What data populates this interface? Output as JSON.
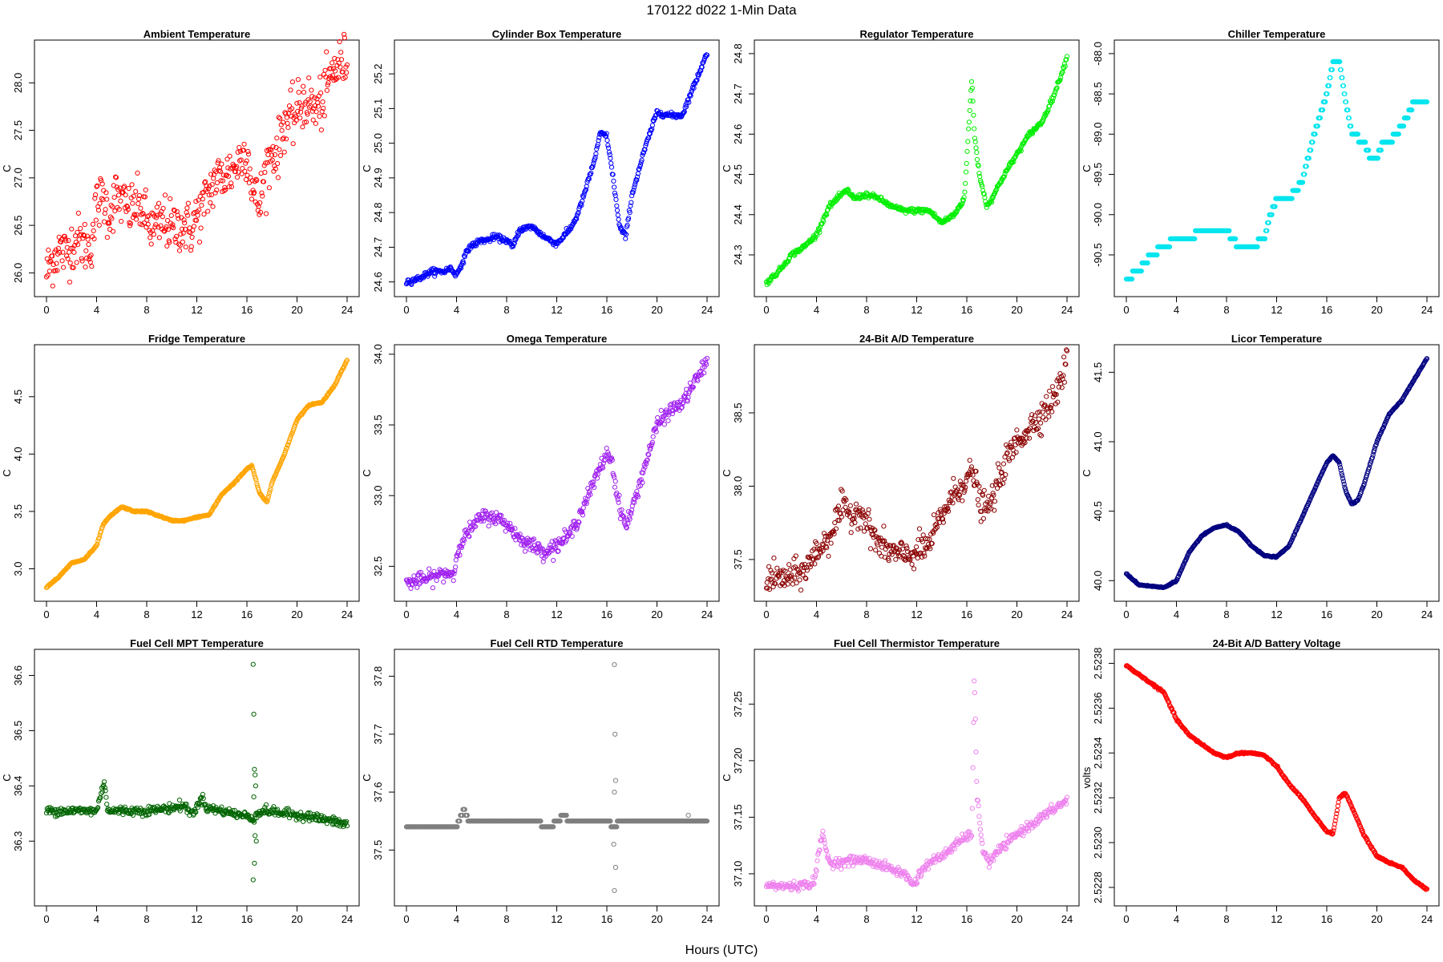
{
  "figure": {
    "title": "170122   d022   1-Min Data",
    "xlabel": "Hours (UTC)"
  },
  "chart_data": [
    {
      "type": "scatter",
      "title": "Ambient Temperature",
      "ylabel": "C",
      "color": "#ff0000",
      "xlim": [
        0,
        24
      ],
      "ylim": [
        25.85,
        28.35
      ],
      "xticks": [
        0,
        4,
        8,
        12,
        16,
        20,
        24
      ],
      "yticks": [
        26.0,
        26.5,
        27.0,
        27.5,
        28.0
      ],
      "ytick_labels": [
        "26.0",
        "26.5",
        "27.0",
        "27.5",
        "28.0"
      ],
      "noise": 0.14,
      "x": [
        0,
        0.5,
        1,
        1.5,
        2,
        2.5,
        3,
        3.5,
        4,
        4.5,
        5,
        5.5,
        6,
        6.5,
        7,
        7.5,
        8,
        8.5,
        9,
        9.5,
        10,
        10.5,
        11,
        11.5,
        12,
        12.5,
        13,
        13.5,
        14,
        14.5,
        15,
        15.5,
        16,
        16.5,
        17,
        17.5,
        18,
        18.5,
        19,
        19.5,
        20,
        20.5,
        21,
        21.5,
        22,
        22.5,
        23,
        23.5,
        24
      ],
      "y": [
        26.0,
        26.15,
        26.25,
        26.2,
        26.3,
        26.35,
        26.3,
        26.25,
        26.7,
        26.8,
        26.6,
        26.8,
        26.75,
        26.65,
        26.7,
        26.7,
        26.55,
        26.45,
        26.5,
        26.55,
        26.45,
        26.5,
        26.5,
        26.45,
        26.6,
        26.7,
        26.85,
        27.0,
        27.0,
        27.05,
        27.1,
        27.2,
        27.3,
        26.85,
        26.7,
        27.1,
        27.25,
        27.3,
        27.6,
        27.6,
        27.7,
        27.8,
        27.8,
        27.7,
        27.8,
        28.0,
        28.15,
        28.2,
        28.25
      ]
    },
    {
      "type": "scatter",
      "title": "Cylinder Box Temperature",
      "ylabel": "C",
      "color": "#0000ff",
      "xlim": [
        0,
        24
      ],
      "ylim": [
        24.585,
        25.27
      ],
      "xticks": [
        0,
        4,
        8,
        12,
        16,
        20,
        24
      ],
      "yticks": [
        24.6,
        24.7,
        24.8,
        24.9,
        25.0,
        25.1,
        25.2
      ],
      "ytick_labels": [
        "24.6",
        "24.7",
        "24.8",
        "24.9",
        "25.0",
        "25.1",
        "25.2"
      ],
      "noise": 0.004,
      "x": [
        0,
        1,
        2,
        3,
        3.5,
        4,
        5,
        6,
        6.5,
        7,
        8,
        8.5,
        9,
        10,
        11,
        12,
        13,
        13.5,
        14,
        15,
        15.5,
        16,
        16.5,
        17,
        17.5,
        18,
        19,
        20,
        21,
        22,
        23,
        24
      ],
      "y": [
        24.6,
        24.61,
        24.63,
        24.63,
        24.64,
        24.62,
        24.7,
        24.72,
        24.72,
        24.73,
        24.72,
        24.7,
        24.75,
        24.76,
        24.73,
        24.71,
        24.75,
        24.78,
        24.83,
        24.95,
        25.03,
        25.02,
        24.9,
        24.76,
        24.73,
        24.85,
        24.98,
        25.09,
        25.08,
        25.08,
        25.17,
        25.26
      ]
    },
    {
      "type": "scatter",
      "title": "Regulator Temperature",
      "ylabel": "C",
      "color": "#00ee00",
      "xlim": [
        0,
        24
      ],
      "ylim": [
        24.22,
        24.81
      ],
      "xticks": [
        0,
        4,
        8,
        12,
        16,
        20,
        24
      ],
      "yticks": [
        24.3,
        24.4,
        24.5,
        24.6,
        24.7,
        24.8
      ],
      "ytick_labels": [
        "24.3",
        "24.4",
        "24.5",
        "24.6",
        "24.7",
        "24.8"
      ],
      "noise": 0.003,
      "x": [
        0,
        1,
        2,
        3,
        4,
        5,
        6,
        6.5,
        7,
        8,
        9,
        10,
        11,
        12,
        13,
        14,
        15,
        15.8,
        16.4,
        16.6,
        17,
        17.6,
        18,
        19,
        20,
        21,
        22,
        23,
        24
      ],
      "y": [
        24.23,
        24.26,
        24.3,
        24.32,
        24.35,
        24.42,
        24.45,
        24.46,
        24.44,
        24.45,
        24.44,
        24.42,
        24.41,
        24.41,
        24.41,
        24.38,
        24.4,
        24.44,
        24.74,
        24.6,
        24.5,
        24.42,
        24.44,
        24.5,
        24.55,
        24.6,
        24.63,
        24.7,
        24.79
      ]
    },
    {
      "type": "scatter",
      "title": "Chiller Temperature",
      "ylabel": "C",
      "color": "#00e5ee",
      "xlim": [
        0,
        24
      ],
      "ylim": [
        -90.9,
        -87.95
      ],
      "xticks": [
        0,
        4,
        8,
        12,
        16,
        20,
        24
      ],
      "yticks": [
        -88.0,
        -88.5,
        -89.0,
        -89.5,
        -90.0,
        -90.5
      ],
      "ytick_labels": [
        "-88.0",
        "-88.5",
        "-89.0",
        "-89.5",
        "-90.0",
        "-90.5"
      ],
      "noise": 0,
      "step": 0.1,
      "x": [
        0,
        1,
        2,
        3,
        4,
        5,
        6,
        7,
        8,
        8.5,
        9,
        10,
        11,
        11.5,
        12,
        13,
        14,
        15,
        16,
        16.5,
        17,
        17.5,
        18,
        19,
        19.5,
        20,
        20.5,
        21,
        22,
        23,
        24
      ],
      "y": [
        -90.8,
        -90.7,
        -90.5,
        -90.4,
        -90.3,
        -90.3,
        -90.2,
        -90.2,
        -90.2,
        -90.3,
        -90.4,
        -90.4,
        -90.3,
        -90.0,
        -89.8,
        -89.8,
        -89.6,
        -89.0,
        -88.5,
        -88.1,
        -88.1,
        -88.6,
        -89.0,
        -89.1,
        -89.3,
        -89.3,
        -89.1,
        -89.1,
        -88.9,
        -88.6,
        -88.6
      ]
    },
    {
      "type": "scatter",
      "title": "Fridge Temperature",
      "ylabel": "C",
      "color": "#ffa500",
      "xlim": [
        0,
        24
      ],
      "ylim": [
        2.8,
        4.87
      ],
      "xticks": [
        0,
        4,
        8,
        12,
        16,
        20,
        24
      ],
      "yticks": [
        3.0,
        3.5,
        4.0,
        4.5
      ],
      "ytick_labels": [
        "3.0",
        "3.5",
        "4.0",
        "4.5"
      ],
      "noise": 0.003,
      "x": [
        0,
        1,
        2,
        3,
        4,
        4.5,
        5,
        6,
        7,
        8,
        9,
        10,
        11,
        12,
        13,
        14,
        15,
        16,
        16.4,
        16.6,
        17,
        17.6,
        18,
        19,
        20,
        21,
        22,
        23,
        24
      ],
      "y": [
        2.84,
        2.93,
        3.05,
        3.08,
        3.2,
        3.38,
        3.45,
        3.54,
        3.5,
        3.5,
        3.46,
        3.42,
        3.42,
        3.45,
        3.47,
        3.65,
        3.75,
        3.87,
        3.9,
        3.82,
        3.66,
        3.58,
        3.75,
        4.0,
        4.3,
        4.43,
        4.45,
        4.6,
        4.82
      ]
    },
    {
      "type": "scatter",
      "title": "Omega Temperature",
      "ylabel": "C",
      "color": "#a020f0",
      "xlim": [
        0,
        24
      ],
      "ylim": [
        32.32,
        34.0
      ],
      "xticks": [
        0,
        4,
        8,
        12,
        16,
        20,
        24
      ],
      "yticks": [
        32.5,
        33.0,
        33.5,
        34.0
      ],
      "ytick_labels": [
        "32.5",
        "33.0",
        "33.5",
        "34.0"
      ],
      "noise": 0.025,
      "x": [
        0,
        1,
        2,
        3,
        3.8,
        4.2,
        5,
        6,
        7,
        8,
        9,
        10,
        11,
        12,
        13,
        13.5,
        14,
        15,
        16,
        16.4,
        16.8,
        17.5,
        18,
        19,
        20,
        21,
        22,
        23,
        24
      ],
      "y": [
        32.38,
        32.4,
        32.42,
        32.45,
        32.45,
        32.65,
        32.75,
        32.85,
        32.85,
        32.8,
        32.7,
        32.65,
        32.6,
        32.65,
        32.72,
        32.8,
        32.9,
        33.1,
        33.3,
        33.25,
        33.0,
        32.78,
        32.9,
        33.2,
        33.5,
        33.6,
        33.65,
        33.8,
        33.95
      ]
    },
    {
      "type": "scatter",
      "title": "24-Bit A/D Temperature",
      "ylabel": "C",
      "color": "#8b0000",
      "xlim": [
        0,
        24
      ],
      "ylim": [
        37.28,
        38.9
      ],
      "xticks": [
        0,
        4,
        8,
        12,
        16,
        20,
        24
      ],
      "yticks": [
        37.5,
        38.0,
        38.5
      ],
      "ytick_labels": [
        "37.5",
        "38.0",
        "38.5"
      ],
      "noise": 0.05,
      "x": [
        0,
        1,
        2,
        3,
        4,
        5,
        6,
        6.5,
        7,
        7.5,
        8,
        9,
        10,
        11,
        12,
        13,
        14,
        15,
        16,
        16.5,
        17,
        17.5,
        18,
        19,
        20,
        21,
        22,
        23,
        24
      ],
      "y": [
        37.38,
        37.37,
        37.38,
        37.42,
        37.55,
        37.65,
        37.85,
        37.82,
        37.8,
        37.85,
        37.75,
        37.6,
        37.55,
        37.52,
        37.55,
        37.6,
        37.8,
        37.95,
        38.05,
        38.1,
        37.9,
        37.83,
        37.9,
        38.15,
        38.3,
        38.4,
        38.5,
        38.6,
        38.85
      ]
    },
    {
      "type": "scatter",
      "title": "Licor Temperature",
      "ylabel": "C",
      "color": "#000080",
      "xlim": [
        0,
        24
      ],
      "ylim": [
        39.92,
        41.63
      ],
      "xticks": [
        0,
        4,
        8,
        12,
        16,
        20,
        24
      ],
      "yticks": [
        40.0,
        40.5,
        41.0,
        41.5
      ],
      "ytick_labels": [
        "40.0",
        "40.5",
        "41.0",
        "41.5"
      ],
      "noise": 0.002,
      "x": [
        0,
        1,
        2,
        3,
        4,
        5,
        6,
        7,
        8,
        9,
        10,
        11,
        12,
        13,
        14,
        15,
        16,
        16.5,
        17,
        17.5,
        18,
        18.5,
        19,
        20,
        21,
        22,
        23,
        24
      ],
      "y": [
        40.05,
        39.97,
        39.96,
        39.95,
        40.0,
        40.2,
        40.32,
        40.38,
        40.4,
        40.35,
        40.25,
        40.18,
        40.17,
        40.25,
        40.45,
        40.65,
        40.85,
        40.9,
        40.85,
        40.65,
        40.55,
        40.58,
        40.7,
        41.0,
        41.2,
        41.3,
        41.45,
        41.6
      ]
    },
    {
      "type": "scatter",
      "title": "Fuel Cell MPT Temperature",
      "ylabel": "C",
      "color": "#006400",
      "xlim": [
        0,
        24
      ],
      "ylim": [
        36.2,
        36.63
      ],
      "xticks": [
        0,
        4,
        8,
        12,
        16,
        20,
        24
      ],
      "yticks": [
        36.3,
        36.4,
        36.5,
        36.6
      ],
      "ytick_labels": [
        "36.3",
        "36.4",
        "36.5",
        "36.6"
      ],
      "noise": 0.004,
      "x": [
        0,
        2,
        4,
        4.3,
        4.6,
        4.9,
        6,
        8,
        10,
        11,
        11.5,
        12,
        12.4,
        12.8,
        14,
        15,
        16,
        16.5,
        16.8,
        17.5,
        19,
        21,
        22,
        23,
        24
      ],
      "y": [
        36.355,
        36.355,
        36.355,
        36.38,
        36.41,
        36.355,
        36.355,
        36.355,
        36.36,
        36.365,
        36.35,
        36.36,
        36.38,
        36.36,
        36.355,
        36.35,
        36.345,
        36.34,
        36.35,
        36.355,
        36.35,
        36.345,
        36.34,
        36.335,
        36.33
      ],
      "outliers": {
        "x": [
          16.5,
          16.55,
          16.6,
          16.65,
          16.7,
          16.75,
          16.6,
          16.5,
          16.65,
          16.55
        ],
        "y": [
          36.62,
          36.53,
          36.43,
          36.42,
          36.4,
          36.3,
          36.26,
          36.23,
          36.31,
          36.38
        ]
      }
    },
    {
      "type": "scatter",
      "title": "Fuel Cell RTD Temperature",
      "ylabel": "C",
      "color": "#7f7f7f",
      "xlim": [
        0,
        24
      ],
      "ylim": [
        37.42,
        37.83
      ],
      "xticks": [
        0,
        4,
        8,
        12,
        16,
        20,
        24
      ],
      "yticks": [
        37.5,
        37.6,
        37.7,
        37.8
      ],
      "ytick_labels": [
        "37.5",
        "37.6",
        "37.7",
        "37.8"
      ],
      "noise": 0,
      "step": 0.01,
      "x": [
        0,
        4,
        4.2,
        4.6,
        5,
        8,
        10,
        11.5,
        12,
        12.6,
        13,
        16,
        16.6,
        17,
        24
      ],
      "y": [
        37.54,
        37.54,
        37.55,
        37.57,
        37.55,
        37.55,
        37.55,
        37.54,
        37.55,
        37.56,
        37.55,
        37.55,
        37.54,
        37.55,
        37.55
      ],
      "outliers": {
        "x": [
          16.6,
          16.65,
          16.7,
          16.6,
          16.55,
          16.7,
          16.6,
          22.5
        ],
        "y": [
          37.82,
          37.7,
          37.62,
          37.6,
          37.51,
          37.47,
          37.43,
          37.56
        ]
      }
    },
    {
      "type": "scatter",
      "title": "Fuel Cell Thermistor Temperature",
      "ylabel": "C",
      "color": "#ee82ee",
      "xlim": [
        0,
        24
      ],
      "ylim": [
        37.08,
        37.29
      ],
      "xticks": [
        0,
        4,
        8,
        12,
        16,
        20,
        24
      ],
      "yticks": [
        37.1,
        37.15,
        37.2,
        37.25
      ],
      "ytick_labels": [
        "37.10",
        "37.15",
        "37.20",
        "37.25"
      ],
      "noise": 0.002,
      "x": [
        0,
        1,
        2,
        3,
        3.8,
        4.2,
        4.5,
        5,
        6,
        7,
        8,
        9,
        10,
        11,
        11.8,
        12.2,
        12.6,
        13,
        14,
        15,
        16,
        16.4,
        16.6,
        16.8,
        17.3,
        17.8,
        18.5,
        20,
        22,
        24
      ],
      "y": [
        37.09,
        37.089,
        37.089,
        37.09,
        37.092,
        37.12,
        37.135,
        37.11,
        37.11,
        37.112,
        37.112,
        37.108,
        37.104,
        37.1,
        37.09,
        37.1,
        37.105,
        37.11,
        37.115,
        37.125,
        37.133,
        37.135,
        37.28,
        37.17,
        37.12,
        37.11,
        37.12,
        37.135,
        37.15,
        37.165
      ]
    },
    {
      "type": "scatter",
      "title": "24-Bit A/D Battery Voltage",
      "ylabel": "volts",
      "color": "#ff0000",
      "xlim": [
        0,
        24
      ],
      "ylim": [
        2.52276,
        2.52382
      ],
      "xticks": [
        0,
        4,
        8,
        12,
        16,
        20,
        24
      ],
      "yticks": [
        2.5228,
        2.523,
        2.5232,
        2.5234,
        2.5236,
        2.5238
      ],
      "ytick_labels": [
        "2.5228",
        "2.5230",
        "2.5232",
        "2.5234",
        "2.5236",
        "2.5238"
      ],
      "noise": 2e-06,
      "x": [
        0,
        1,
        2,
        3,
        4,
        5,
        6,
        7,
        8,
        9,
        10,
        11,
        12,
        13,
        14,
        15,
        16,
        16.5,
        17,
        17.5,
        18,
        19,
        20,
        21,
        22,
        23,
        24
      ],
      "y": [
        2.52379,
        2.52375,
        2.52371,
        2.52367,
        2.52355,
        2.52348,
        2.52344,
        2.5234,
        2.52338,
        2.5234,
        2.5234,
        2.52339,
        2.52334,
        2.52326,
        2.5232,
        2.52312,
        2.52305,
        2.52304,
        2.5232,
        2.52322,
        2.52316,
        2.52303,
        2.52294,
        2.52291,
        2.52289,
        2.52283,
        2.52279
      ]
    }
  ]
}
